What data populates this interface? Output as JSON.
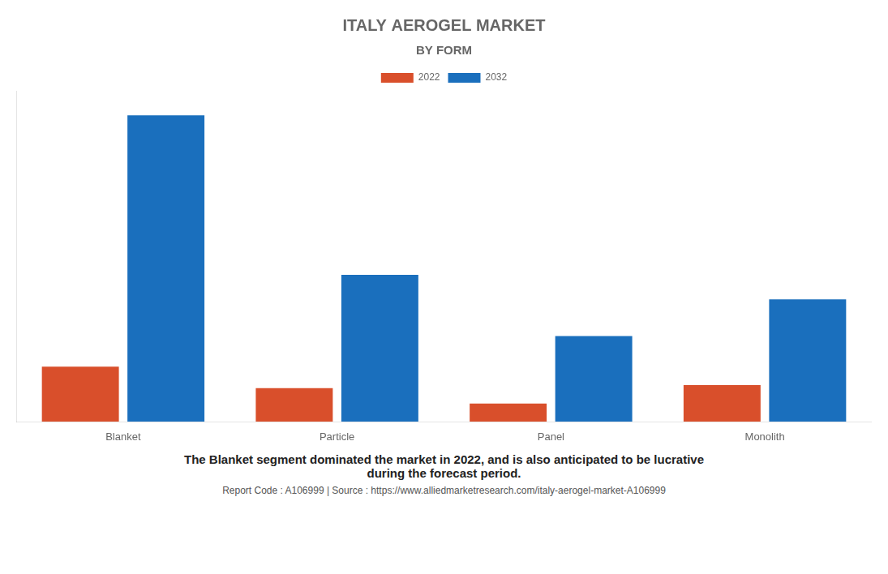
{
  "chart_data": {
    "type": "bar",
    "title": "ITALY AEROGEL MARKET",
    "subtitle": "BY FORM",
    "categories": [
      "Blanket",
      "Particle",
      "Panel",
      "Monolith"
    ],
    "series": [
      {
        "name": "2022",
        "color": "#d94f2b",
        "values": [
          18,
          11,
          6,
          12
        ]
      },
      {
        "name": "2032",
        "color": "#1a6fbd",
        "values": [
          100,
          48,
          28,
          40
        ]
      }
    ],
    "ylim": [
      0,
      108
    ],
    "grid": false,
    "tick_labels": "x",
    "legend": "top",
    "annotations": [
      "The Blanket segment dominated the market in 2022, and is also anticipated to be lucrative\nduring the forecast period.",
      "Report Code : A106999  |  Source : https://www.alliedmarketresearch.com/italy-aerogel-market-A106999"
    ]
  }
}
